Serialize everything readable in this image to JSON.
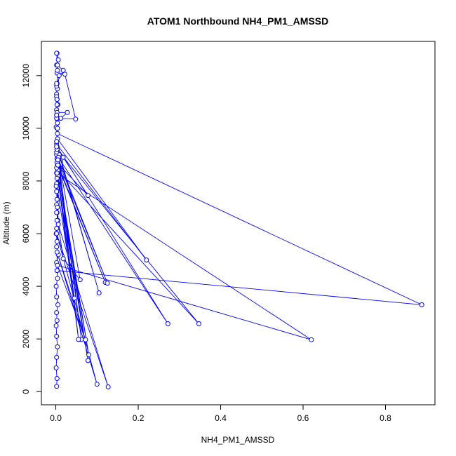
{
  "chart_data": {
    "type": "line",
    "title": "ATOM1 Northbound NH4_PM1_AMSSD",
    "xlabel": "NH4_PM1_AMSSD",
    "ylabel": "Altitude (m)",
    "xlim": [
      -0.035,
      0.92
    ],
    "ylim": [
      -500,
      13300
    ],
    "xticks": [
      0.0,
      0.2,
      0.4,
      0.6,
      0.8
    ],
    "xtick_labels": [
      "0.0",
      "0.2",
      "0.4",
      "0.6",
      "0.8"
    ],
    "yticks": [
      0,
      2000,
      4000,
      6000,
      8000,
      10000,
      12000
    ],
    "ytick_labels": [
      "0",
      "2000",
      "4000",
      "6000",
      "8000",
      "10000",
      "12000"
    ],
    "grid": false,
    "series": [
      {
        "color": "#0000ff",
        "marker": "open-circle",
        "x": [
          0.002,
          0.003,
          0.001,
          0.002,
          0.004,
          0.002,
          0.001,
          0.003,
          0.002,
          0.005,
          0.002,
          0.001,
          0.004,
          0.003,
          0.002,
          0.006,
          0.002,
          0.003,
          0.001,
          0.002,
          0.005,
          0.003,
          0.002,
          0.004,
          0.018,
          0.078,
          0.003,
          0.12,
          0.004,
          0.002,
          0.125,
          0.003,
          0.005,
          0.045,
          0.002,
          0.006,
          0.018,
          0.059,
          0.003,
          0.008,
          0.105,
          0.002,
          0.22,
          0.004,
          0.003,
          0.888,
          0.004,
          0.002,
          0.062,
          0.006,
          0.272,
          0.003,
          0.005,
          0.347,
          0.003,
          0.055,
          0.002,
          0.08,
          0.003,
          0.078,
          0.002,
          0.62,
          0.004,
          0.072,
          0.003,
          0.1,
          0.002,
          0.127,
          0.003,
          0.004,
          0.002,
          0.003,
          0.005,
          0.002,
          0.003,
          0.001,
          0.004,
          0.003,
          0.002,
          0.005,
          0.003,
          0.002,
          0.004,
          0.003,
          0.002,
          0.003,
          0.028,
          0.012,
          0.003,
          0.002,
          0.048,
          0.022,
          0.003,
          0.008,
          0.002,
          0.003,
          0.004,
          0.002,
          0.006,
          0.003,
          0.002,
          0.004,
          0.018,
          0.002,
          0.003,
          0.002,
          0.004,
          0.002,
          0.005,
          0.003,
          0.001,
          0.003,
          0.002
        ],
        "y": [
          200,
          500,
          900,
          1300,
          1700,
          2100,
          2500,
          2700,
          3000,
          3300,
          3600,
          4000,
          4300,
          4600,
          4900,
          5200,
          5500,
          5700,
          6000,
          6200,
          6500,
          6800,
          7100,
          7300,
          8900,
          7450,
          8700,
          4150,
          8600,
          9000,
          4120,
          8850,
          8200,
          3550,
          7900,
          6350,
          5050,
          4250,
          9200,
          9000,
          3750,
          9400,
          5000,
          9600,
          4600,
          3300,
          9800,
          9100,
          1980,
          8900,
          2580,
          9300,
          8400,
          2580,
          9200,
          1980,
          8500,
          1400,
          8700,
          1180,
          8300,
          1970,
          4800,
          1970,
          5300,
          280,
          6000,
          180,
          6500,
          7000,
          7600,
          8100,
          8800,
          9500,
          10000,
          10050,
          10200,
          10400,
          10700,
          10900,
          11100,
          11300,
          11500,
          11700,
          11600,
          10600,
          10600,
          10380,
          10350,
          10380,
          10350,
          12050,
          12100,
          12000,
          11200,
          10900,
          12200,
          12400,
          12600,
          12850,
          12850,
          12400,
          12200,
          11700,
          11100,
          10500,
          10000,
          9300,
          8600,
          8300,
          7800,
          7300,
          6800
        ]
      }
    ]
  }
}
